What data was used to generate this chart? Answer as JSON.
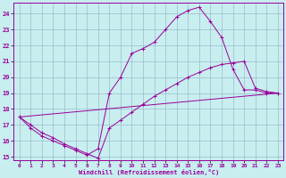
{
  "xlabel": "Windchill (Refroidissement éolien,°C)",
  "bg_color": "#c8eef0",
  "line_color": "#990099",
  "grid_color": "#9bbccc",
  "xlim": [
    -0.5,
    23.5
  ],
  "ylim": [
    14.8,
    24.7
  ],
  "yticks": [
    15,
    16,
    17,
    18,
    19,
    20,
    21,
    22,
    23,
    24
  ],
  "xticks": [
    0,
    1,
    2,
    3,
    4,
    5,
    6,
    7,
    8,
    9,
    10,
    11,
    12,
    13,
    14,
    15,
    16,
    17,
    18,
    19,
    20,
    21,
    22,
    23
  ],
  "line1_x": [
    0,
    1,
    2,
    3,
    4,
    5,
    6,
    7,
    8,
    9,
    10,
    11,
    12,
    13,
    14,
    15,
    16,
    17,
    18,
    19,
    20,
    21,
    22,
    23
  ],
  "line1_y": [
    17.5,
    17.0,
    16.5,
    16.2,
    15.8,
    15.5,
    15.2,
    14.9,
    16.8,
    17.3,
    17.8,
    18.3,
    18.8,
    19.2,
    19.6,
    20.0,
    20.3,
    20.6,
    20.8,
    20.9,
    21.0,
    19.3,
    19.1,
    19.0
  ],
  "line2_x": [
    0,
    1,
    2,
    3,
    4,
    5,
    6,
    7,
    8,
    9,
    10,
    11,
    12,
    13,
    14,
    15,
    16,
    17,
    18,
    19,
    20,
    21,
    22,
    23
  ],
  "line2_y": [
    17.5,
    16.8,
    16.3,
    16.0,
    15.7,
    15.4,
    15.1,
    15.5,
    19.0,
    20.0,
    21.5,
    21.8,
    22.2,
    23.0,
    23.8,
    24.2,
    24.4,
    23.5,
    22.5,
    20.5,
    19.2,
    19.2,
    19.0,
    19.0
  ],
  "line3_x": [
    0,
    23
  ],
  "line3_y": [
    17.5,
    19.0
  ]
}
